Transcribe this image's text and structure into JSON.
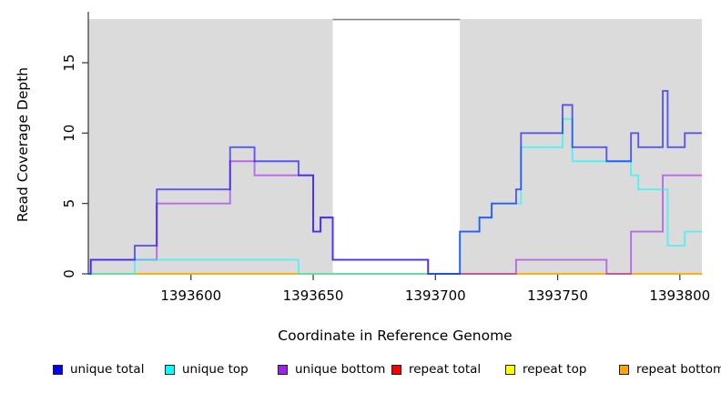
{
  "chart_data": {
    "type": "line",
    "subtype": "step-coverage",
    "title": "",
    "xlabel": "Coordinate in Reference Genome",
    "ylabel": "Read Coverage Depth",
    "xlim": [
      1393558,
      1393809
    ],
    "ylim": [
      0,
      18.1
    ],
    "x_ticks": [
      "1393600",
      "1393650",
      "1393700",
      "1393750",
      "1393800"
    ],
    "x_tick_values": [
      1393600,
      1393650,
      1393700,
      1393750,
      1393800
    ],
    "y_ticks": [
      "0",
      "5",
      "10",
      "15"
    ],
    "y_tick_values": [
      0,
      5,
      10,
      15
    ],
    "grid": false,
    "legend_position": "bottom",
    "panel_color": "#DBDBDB",
    "background_color": "#FFFFFF",
    "gap_border_color": "#7E7E7E",
    "shaded_regions": [
      {
        "label": "left-repeat-region",
        "x0": 1393558,
        "x1": 1393658
      },
      {
        "label": "right-repeat-region",
        "x0": 1393710,
        "x1": 1393809
      }
    ],
    "white_gap": {
      "x0": 1393658,
      "x1": 1393710
    },
    "draw_order": [
      "repeat total",
      "repeat top",
      "repeat bottom",
      "unique bottom",
      "unique top",
      "unique total"
    ],
    "stroke_opacity": 0.6,
    "series": [
      {
        "name": "unique total",
        "color": "#0000FF",
        "steps": [
          [
            1393558,
            0
          ],
          [
            1393559,
            1
          ],
          [
            1393577,
            2
          ],
          [
            1393586,
            6
          ],
          [
            1393616,
            9
          ],
          [
            1393626,
            8
          ],
          [
            1393644,
            7
          ],
          [
            1393650,
            3
          ],
          [
            1393653,
            4
          ],
          [
            1393658,
            1
          ],
          [
            1393697,
            0
          ],
          [
            1393710,
            3
          ],
          [
            1393718,
            4
          ],
          [
            1393723,
            5
          ],
          [
            1393733,
            6
          ],
          [
            1393735,
            10
          ],
          [
            1393752,
            12
          ],
          [
            1393756,
            9
          ],
          [
            1393770,
            8
          ],
          [
            1393780,
            10
          ],
          [
            1393783,
            9
          ],
          [
            1393793,
            13
          ],
          [
            1393795,
            9
          ],
          [
            1393802,
            10
          ]
        ]
      },
      {
        "name": "unique top",
        "color": "#00FFFF",
        "steps": [
          [
            1393558,
            0
          ],
          [
            1393577,
            1
          ],
          [
            1393644,
            0
          ],
          [
            1393710,
            3
          ],
          [
            1393718,
            4
          ],
          [
            1393723,
            5
          ],
          [
            1393735,
            9
          ],
          [
            1393752,
            11
          ],
          [
            1393756,
            8
          ],
          [
            1393780,
            7
          ],
          [
            1393783,
            6
          ],
          [
            1393795,
            2
          ],
          [
            1393802,
            3
          ]
        ]
      },
      {
        "name": "unique bottom",
        "color": "#A020F0",
        "steps": [
          [
            1393558,
            0
          ],
          [
            1393559,
            1
          ],
          [
            1393586,
            5
          ],
          [
            1393616,
            8
          ],
          [
            1393626,
            7
          ],
          [
            1393650,
            3
          ],
          [
            1393653,
            4
          ],
          [
            1393658,
            1
          ],
          [
            1393697,
            0
          ],
          [
            1393733,
            1
          ],
          [
            1393770,
            0
          ],
          [
            1393780,
            3
          ],
          [
            1393793,
            7
          ]
        ]
      },
      {
        "name": "repeat total",
        "color": "#FF0000",
        "steps": [
          [
            1393558,
            0
          ]
        ]
      },
      {
        "name": "repeat top",
        "color": "#FFFF00",
        "steps": [
          [
            1393558,
            0
          ]
        ]
      },
      {
        "name": "repeat bottom",
        "color": "#FFA500",
        "steps": [
          [
            1393558,
            0
          ]
        ]
      }
    ]
  }
}
